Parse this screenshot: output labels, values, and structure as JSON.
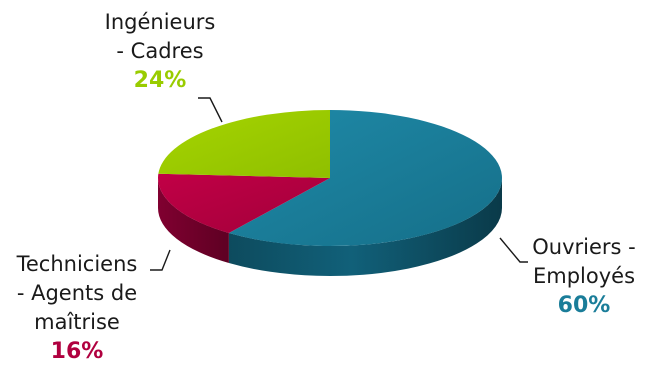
{
  "chart_data": {
    "type": "pie",
    "style": "3d",
    "slices": [
      {
        "label": [
          "Ouvriers -",
          "Employés"
        ],
        "value": 60,
        "value_label": "60%",
        "color": "#1a7d99"
      },
      {
        "label": [
          "Techniciens",
          "- Agents de",
          "maîtrise"
        ],
        "value": 16,
        "value_label": "16%",
        "color": "#b0003f"
      },
      {
        "label": [
          "Ingénieurs",
          "- Cadres"
        ],
        "value": 24,
        "value_label": "24%",
        "color": "#99cc00"
      }
    ],
    "title": "",
    "legend": "none"
  }
}
